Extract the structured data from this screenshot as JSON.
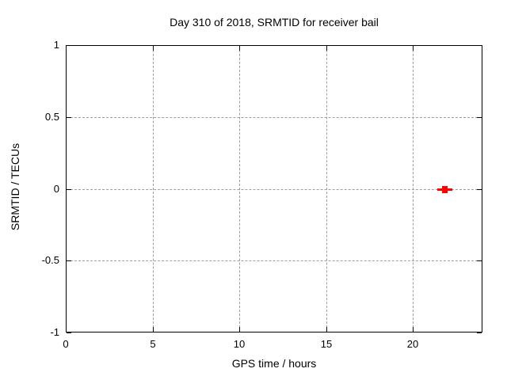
{
  "window": {
    "background": "#ffffff",
    "foreground": "#000000"
  },
  "chart_data": {
    "type": "scatter",
    "title": "Day 310 of 2018, SRMTID for receiver bail",
    "xlabel": "GPS time / hours",
    "ylabel": "SRMTID / TECUs",
    "xlim": [
      0,
      24
    ],
    "ylim": [
      -1,
      1
    ],
    "xticks": [
      0,
      5,
      10,
      15,
      20
    ],
    "yticks": [
      -1,
      -0.5,
      0,
      0.5,
      1
    ],
    "grid": {
      "show": true,
      "color": "#9e9e9e",
      "style": "dashed"
    },
    "legend": "none",
    "border_color": "#000000",
    "series": [
      {
        "name": "SRMTID",
        "color": "#ff0000",
        "marker": "filled-square-with-xerror-arms",
        "points": [
          {
            "x": 21.8,
            "y": 0.0
          }
        ]
      }
    ]
  }
}
